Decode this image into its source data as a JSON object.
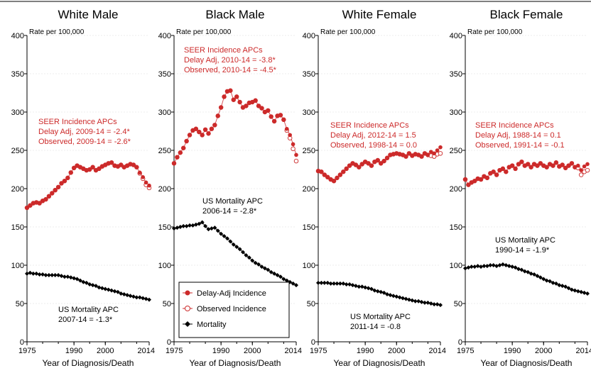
{
  "chart_data": [
    {
      "type": "line",
      "title": "White Male",
      "ylabel": "Rate per 100,000",
      "xlabel": "Year of Diagnosis/Death",
      "xticks": [
        1975,
        1990,
        2000,
        2014
      ],
      "yticks": [
        0,
        50,
        100,
        150,
        200,
        250,
        300,
        350,
        400
      ],
      "xlim": [
        1975,
        2014
      ],
      "ylim": [
        0,
        400
      ],
      "incidence_annotation": [
        "SEER Incidence APCs",
        "Delay Adj, 2009-14 = -2.4*",
        "Observed, 2009-14 = -2.6*"
      ],
      "mortality_annotation": [
        "US Mortality APC",
        "2007-14 = -1.3*"
      ],
      "x": [
        1975,
        1976,
        1977,
        1978,
        1979,
        1980,
        1981,
        1982,
        1983,
        1984,
        1985,
        1986,
        1987,
        1988,
        1989,
        1990,
        1991,
        1992,
        1993,
        1994,
        1995,
        1996,
        1997,
        1998,
        1999,
        2000,
        2001,
        2002,
        2003,
        2004,
        2005,
        2006,
        2007,
        2008,
        2009,
        2010,
        2011,
        2012,
        2013,
        2014
      ],
      "series": [
        {
          "name": "Delay-Adj Incidence",
          "values": [
            175,
            178,
            181,
            182,
            181,
            184,
            186,
            190,
            194,
            198,
            202,
            207,
            210,
            214,
            221,
            227,
            230,
            228,
            226,
            224,
            225,
            228,
            224,
            226,
            229,
            231,
            233,
            234,
            230,
            229,
            231,
            228,
            230,
            232,
            231,
            228,
            221,
            215,
            208,
            204
          ]
        },
        {
          "name": "Observed Incidence",
          "values": [
            175,
            178,
            181,
            182,
            181,
            184,
            186,
            190,
            194,
            198,
            202,
            207,
            210,
            214,
            221,
            227,
            230,
            228,
            226,
            224,
            225,
            228,
            224,
            226,
            229,
            231,
            233,
            234,
            230,
            229,
            231,
            228,
            230,
            232,
            231,
            228,
            220,
            213,
            205,
            201
          ]
        },
        {
          "name": "Mortality",
          "values": [
            89,
            90,
            89,
            89,
            88,
            88,
            87,
            87,
            87,
            87,
            87,
            86,
            85,
            85,
            84,
            83,
            82,
            80,
            78,
            77,
            75,
            74,
            73,
            71,
            70,
            69,
            68,
            67,
            66,
            65,
            63,
            62,
            61,
            60,
            59,
            58,
            58,
            57,
            56,
            55
          ]
        }
      ]
    },
    {
      "type": "line",
      "title": "Black Male",
      "ylabel": "Rate per 100,000",
      "xlabel": "Year of Diagnosis/Death",
      "xticks": [
        1975,
        1990,
        2000,
        2014
      ],
      "yticks": [
        0,
        50,
        100,
        150,
        200,
        250,
        300,
        350,
        400
      ],
      "xlim": [
        1975,
        2014
      ],
      "ylim": [
        0,
        400
      ],
      "incidence_annotation": [
        "SEER Incidence APCs",
        "Delay Adj, 2010-14 = -3.8*",
        "Observed, 2010-14 = -4.5*"
      ],
      "mortality_annotation": [
        "US Mortality APC",
        "2006-14 = -2.8*"
      ],
      "x": [
        1975,
        1976,
        1977,
        1978,
        1979,
        1980,
        1981,
        1982,
        1983,
        1984,
        1985,
        1986,
        1987,
        1988,
        1989,
        1990,
        1991,
        1992,
        1993,
        1994,
        1995,
        1996,
        1997,
        1998,
        1999,
        2000,
        2001,
        2002,
        2003,
        2004,
        2005,
        2006,
        2007,
        2008,
        2009,
        2010,
        2011,
        2012,
        2013,
        2014
      ],
      "series": [
        {
          "name": "Delay-Adj Incidence",
          "values": [
            233,
            241,
            247,
            253,
            262,
            270,
            276,
            278,
            274,
            270,
            277,
            272,
            278,
            283,
            295,
            306,
            320,
            327,
            328,
            316,
            320,
            313,
            306,
            308,
            312,
            313,
            315,
            308,
            305,
            300,
            302,
            294,
            288,
            295,
            296,
            290,
            278,
            270,
            258,
            244
          ]
        },
        {
          "name": "Observed Incidence",
          "values": [
            233,
            241,
            247,
            253,
            262,
            270,
            276,
            278,
            274,
            270,
            277,
            272,
            278,
            283,
            295,
            306,
            320,
            327,
            328,
            316,
            320,
            313,
            306,
            308,
            312,
            313,
            315,
            308,
            305,
            300,
            302,
            294,
            288,
            295,
            296,
            290,
            276,
            266,
            252,
            236
          ]
        },
        {
          "name": "Mortality",
          "values": [
            148,
            149,
            150,
            151,
            151,
            152,
            152,
            153,
            154,
            156,
            151,
            147,
            148,
            149,
            145,
            141,
            138,
            135,
            131,
            127,
            124,
            121,
            117,
            113,
            110,
            106,
            103,
            101,
            98,
            96,
            94,
            91,
            89,
            87,
            85,
            82,
            80,
            78,
            76,
            74
          ]
        }
      ]
    },
    {
      "type": "line",
      "title": "White Female",
      "ylabel": "Rate per 100,000",
      "xlabel": "Year of Diagnosis/Death",
      "xticks": [
        1975,
        1990,
        2000,
        2014
      ],
      "yticks": [
        0,
        50,
        100,
        150,
        200,
        250,
        300,
        350,
        400
      ],
      "xlim": [
        1975,
        2014
      ],
      "ylim": [
        0,
        400
      ],
      "incidence_annotation": [
        "SEER Incidence APCs",
        "Delay Adj, 2012-14 = 1.5",
        "Observed, 1998-14 = 0.0"
      ],
      "mortality_annotation": [
        "US Mortality APC",
        "2011-14 = -0.8"
      ],
      "x": [
        1975,
        1976,
        1977,
        1978,
        1979,
        1980,
        1981,
        1982,
        1983,
        1984,
        1985,
        1986,
        1987,
        1988,
        1989,
        1990,
        1991,
        1992,
        1993,
        1994,
        1995,
        1996,
        1997,
        1998,
        1999,
        2000,
        2001,
        2002,
        2003,
        2004,
        2005,
        2006,
        2007,
        2008,
        2009,
        2010,
        2011,
        2012,
        2013,
        2014
      ],
      "series": [
        {
          "name": "Delay-Adj Incidence",
          "values": [
            223,
            222,
            218,
            215,
            212,
            210,
            214,
            218,
            222,
            226,
            230,
            233,
            231,
            228,
            232,
            235,
            233,
            230,
            235,
            237,
            233,
            236,
            240,
            244,
            245,
            246,
            245,
            244,
            242,
            246,
            243,
            245,
            244,
            242,
            246,
            244,
            248,
            246,
            250,
            254
          ]
        },
        {
          "name": "Observed Incidence",
          "values": [
            223,
            222,
            218,
            215,
            212,
            210,
            214,
            218,
            222,
            226,
            230,
            233,
            231,
            228,
            232,
            235,
            233,
            230,
            235,
            237,
            233,
            236,
            240,
            244,
            245,
            246,
            245,
            244,
            242,
            246,
            243,
            245,
            244,
            242,
            246,
            244,
            243,
            242,
            245,
            246
          ]
        },
        {
          "name": "Mortality",
          "values": [
            77,
            77,
            77,
            77,
            76,
            76,
            76,
            76,
            76,
            75,
            75,
            74,
            73,
            72,
            72,
            71,
            70,
            69,
            67,
            66,
            65,
            64,
            62,
            61,
            60,
            59,
            58,
            57,
            56,
            55,
            54,
            53,
            53,
            52,
            51,
            51,
            50,
            49,
            49,
            48
          ]
        }
      ]
    },
    {
      "type": "line",
      "title": "Black Female",
      "ylabel": "Rate per 100,000",
      "xlabel": "Year of Diagnosis/Death",
      "xticks": [
        1975,
        1990,
        2000,
        2014
      ],
      "yticks": [
        0,
        50,
        100,
        150,
        200,
        250,
        300,
        350,
        400
      ],
      "xlim": [
        1975,
        2014
      ],
      "ylim": [
        0,
        400
      ],
      "incidence_annotation": [
        "SEER Incidence APCs",
        "Delay Adj, 1988-14 = 0.1",
        "Observed, 1991-14 = -0.1"
      ],
      "mortality_annotation": [
        "US Mortality APC",
        "1990-14 = -1.9*"
      ],
      "x": [
        1975,
        1976,
        1977,
        1978,
        1979,
        1980,
        1981,
        1982,
        1983,
        1984,
        1985,
        1986,
        1987,
        1988,
        1989,
        1990,
        1991,
        1992,
        1993,
        1994,
        1995,
        1996,
        1997,
        1998,
        1999,
        2000,
        2001,
        2002,
        2003,
        2004,
        2005,
        2006,
        2007,
        2008,
        2009,
        2010,
        2011,
        2012,
        2013,
        2014
      ],
      "series": [
        {
          "name": "Delay-Adj Incidence",
          "values": [
            212,
            205,
            208,
            210,
            213,
            212,
            216,
            214,
            220,
            222,
            218,
            224,
            226,
            222,
            228,
            230,
            226,
            232,
            235,
            230,
            232,
            228,
            232,
            230,
            233,
            230,
            228,
            232,
            230,
            234,
            229,
            231,
            227,
            230,
            233,
            228,
            230,
            224,
            229,
            232
          ]
        },
        {
          "name": "Observed Incidence",
          "values": [
            212,
            205,
            208,
            210,
            213,
            212,
            216,
            214,
            220,
            222,
            218,
            224,
            226,
            222,
            228,
            230,
            226,
            232,
            235,
            230,
            232,
            228,
            232,
            230,
            233,
            230,
            228,
            232,
            230,
            234,
            229,
            231,
            227,
            230,
            233,
            228,
            227,
            218,
            222,
            224
          ]
        },
        {
          "name": "Mortality",
          "values": [
            96,
            97,
            98,
            98,
            99,
            98,
            99,
            99,
            100,
            100,
            99,
            100,
            101,
            100,
            99,
            98,
            97,
            95,
            94,
            92,
            91,
            89,
            88,
            86,
            84,
            82,
            80,
            79,
            77,
            76,
            74,
            73,
            72,
            70,
            68,
            67,
            66,
            65,
            64,
            63
          ]
        }
      ]
    }
  ],
  "legend": {
    "placement": "inside-bottom-left of Black Male panel",
    "items": [
      {
        "label": "Delay-Adj Incidence",
        "marker": "filled-circle",
        "color": "#cc2a2a"
      },
      {
        "label": "Observed Incidence",
        "marker": "open-circle",
        "color": "#cc2a2a"
      },
      {
        "label": "Mortality",
        "marker": "filled-diamond",
        "color": "#000000"
      }
    ]
  },
  "colors": {
    "incidence": "#cc2a2a",
    "incidence_line": "#d8555a",
    "mortality": "#000000",
    "grid": "#d9d9d9"
  }
}
